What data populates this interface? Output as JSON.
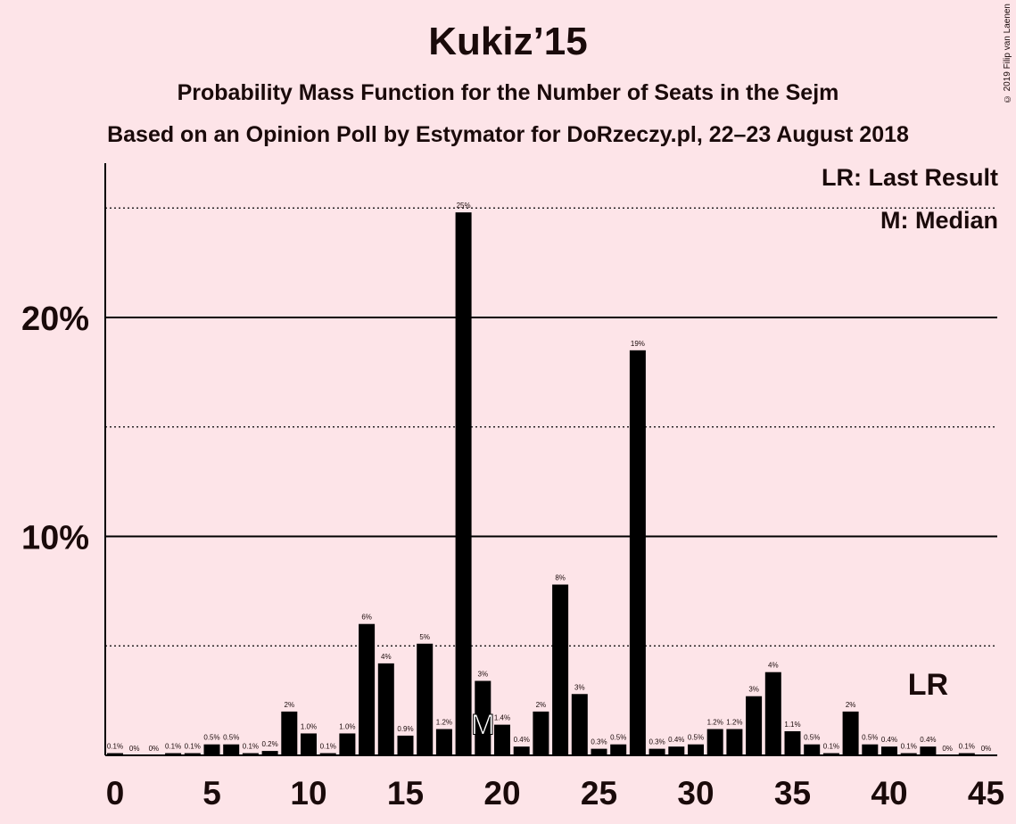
{
  "chart_data": {
    "type": "bar",
    "title": "Kukiz’15",
    "subtitle": "Probability Mass Function for the Number of Seats in the Sejm",
    "subtitle2": "Based on an Opinion Poll by Estymator for DoRzeczy.pl, 22–23 August 2018",
    "credit": "© 2019 Filip van Laenen",
    "x": [
      0,
      1,
      2,
      3,
      4,
      5,
      6,
      7,
      8,
      9,
      10,
      11,
      12,
      13,
      14,
      15,
      16,
      17,
      18,
      19,
      20,
      21,
      22,
      23,
      24,
      25,
      26,
      27,
      28,
      29,
      30,
      31,
      32,
      33,
      34,
      35,
      36,
      37,
      38,
      39,
      40,
      41,
      42,
      43,
      44,
      45
    ],
    "values": [
      0.1,
      0,
      0,
      0.1,
      0.1,
      0.5,
      0.5,
      0.1,
      0.2,
      2,
      1.0,
      0.1,
      1.0,
      6,
      4.2,
      0.9,
      5.1,
      1.2,
      24.8,
      3.4,
      1.4,
      0.4,
      2,
      7.8,
      2.8,
      0.3,
      0.5,
      18.5,
      0.3,
      0.4,
      0.5,
      1.2,
      1.2,
      2.7,
      3.8,
      1.1,
      0.5,
      0.1,
      2,
      0.5,
      0.4,
      0.1,
      0.4,
      0,
      0.1,
      0
    ],
    "data_labels": [
      "0.1%",
      "0%",
      "0%",
      "0.1%",
      "0.1%",
      "0.5%",
      "0.5%",
      "0.1%",
      "0.2%",
      "2%",
      "1.0%",
      "0.1%",
      "1.0%",
      "6%",
      "4%",
      "0.9%",
      "5%",
      "1.2%",
      "25%",
      "3%",
      "1.4%",
      "0.4%",
      "2%",
      "8%",
      "3%",
      "0.3%",
      "0.5%",
      "19%",
      "0.3%",
      "0.4%",
      "0.5%",
      "1.2%",
      "1.2%",
      "3%",
      "4%",
      "1.1%",
      "0.5%",
      "0.1%",
      "2%",
      "0.5%",
      "0.4%",
      "0.1%",
      "0.4%",
      "0%",
      "0.1%",
      "0%"
    ],
    "x_ticks": [
      0,
      5,
      10,
      15,
      20,
      25,
      30,
      35,
      40,
      45
    ],
    "y_ticks": [
      {
        "value": 10,
        "label": "10%"
      },
      {
        "value": 20,
        "label": "20%"
      }
    ],
    "dotted_lines": [
      5,
      15,
      25
    ],
    "ylim": [
      0,
      27
    ],
    "xlim": [
      -0.5,
      45.5
    ],
    "median_seat": 19,
    "median_marker": "M",
    "last_result_seat": 42,
    "last_result_marker": "LR",
    "legend": {
      "lr": "LR: Last Result",
      "m": "M: Median"
    },
    "bar_color": "#000000",
    "background_color": "#fde4e8"
  }
}
